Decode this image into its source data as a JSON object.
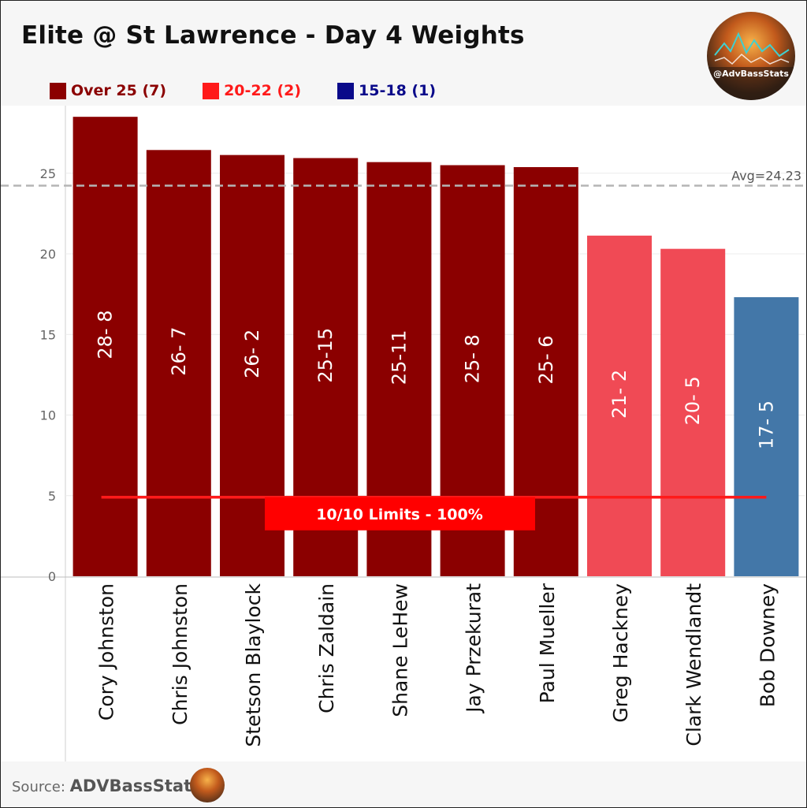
{
  "title": "Elite @ St Lawrence - Day 4 Weights",
  "legend": [
    {
      "label": "Over 25 (7)",
      "color": "#8b0000"
    },
    {
      "label": "20-22 (2)",
      "color": "#ff1a1a"
    },
    {
      "label": "15-18 (1)",
      "color": "#0a0a8a"
    }
  ],
  "logo_handle": "@AdvBassStats",
  "source_prefix": "Source:",
  "source_name": "ADVBassStats",
  "chart_data": {
    "type": "bar",
    "categories": [
      "Cory Johnston",
      "Chris Johnston",
      "Stetson Blaylock",
      "Chris Zaldain",
      "Shane LeHew",
      "Jay Przekurat",
      "Paul Mueller",
      "Greg Hackney",
      "Clark Wendlandt",
      "Bob Downey"
    ],
    "values": [
      28.5,
      26.44,
      26.13,
      25.94,
      25.69,
      25.5,
      25.38,
      21.13,
      20.31,
      17.31
    ],
    "labels": [
      "28- 8",
      "26- 7",
      "26- 2",
      "25-15",
      "25-11",
      "25- 8",
      "25- 6",
      "21- 2",
      "20- 5",
      "17- 5"
    ],
    "bar_colors": [
      "#8b0000",
      "#8b0000",
      "#8b0000",
      "#8b0000",
      "#8b0000",
      "#8b0000",
      "#8b0000",
      "#f04a55",
      "#f04a55",
      "#4377a8"
    ],
    "yticks": [
      0,
      5,
      10,
      15,
      20,
      25
    ],
    "ylim": [
      0,
      29.5
    ],
    "average": {
      "value": 24.23,
      "label": "Avg=24.23"
    },
    "limits_annotation": {
      "label": "10/10 Limits - 100%",
      "value": 5
    },
    "grid": true
  }
}
